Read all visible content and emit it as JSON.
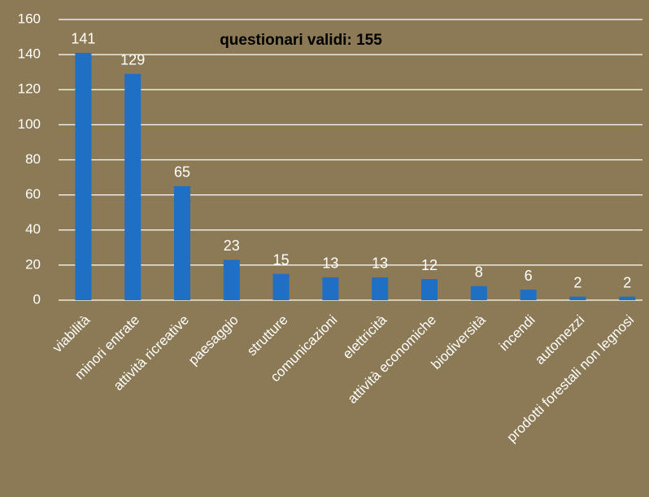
{
  "chart_data": {
    "type": "bar",
    "title": "questionari validi: 155",
    "categories": [
      "viabilità",
      "minori entrate",
      "attività ricreative",
      "paesaggio",
      "strutture",
      "comunicazioni",
      "elettricità",
      "attività economiche",
      "biodiversità",
      "incendi",
      "automezzi",
      "prodotti forestali non legnosi"
    ],
    "values": [
      141,
      129,
      65,
      23,
      15,
      13,
      13,
      12,
      8,
      6,
      2,
      2
    ],
    "color": "#1f6fc5",
    "ylim": [
      0,
      160
    ],
    "yticks": [
      0,
      20,
      40,
      60,
      80,
      100,
      120,
      140,
      160
    ],
    "grid": true
  }
}
